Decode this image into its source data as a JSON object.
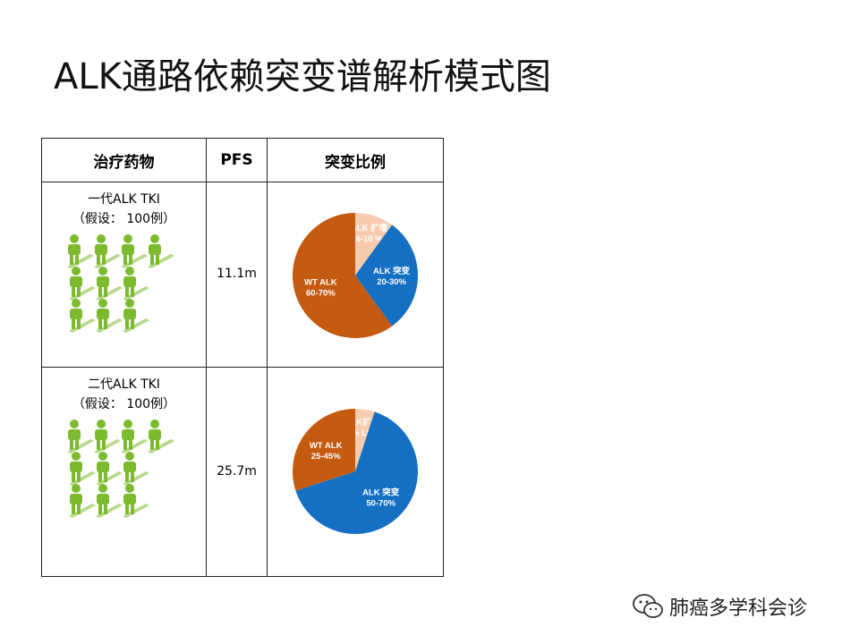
{
  "title": "ALK通路依赖突变谱解析模式图",
  "table": {
    "headers": [
      "治疗药物",
      "PFS",
      "突变比例"
    ],
    "rows": [
      {
        "drug_line1": "一代ALK TKI",
        "drug_line2": "（假设： 100例）",
        "pfs": "11.1m",
        "pie": [
          {
            "label": "ALK 扩增",
            "range": "6-10 %",
            "fraction": 0.1,
            "color": "#F8CBAD"
          },
          {
            "label": "ALK 突变",
            "range": "20-30%",
            "fraction": 0.3,
            "color": "#1570C4"
          },
          {
            "label": "WT ALK",
            "range": "60-70%",
            "fraction": 0.6,
            "color": "#C55A11"
          }
        ]
      },
      {
        "drug_line1": "二代ALK TKI",
        "drug_line2": "（假设： 100例）",
        "pfs": "25.7m",
        "pie": [
          {
            "label": "ALK扩增",
            "range": "% LD",
            "fraction": 0.05,
            "color": "#F8CBAD"
          },
          {
            "label": "ALK 突变",
            "range": "50-70%",
            "fraction": 0.65,
            "color": "#1570C4"
          },
          {
            "label": "WT ALK",
            "range": "25-45%",
            "fraction": 0.3,
            "color": "#C55A11"
          }
        ]
      }
    ]
  },
  "people_icon_color": "#7DBB2E",
  "logo": {
    "text": "肺癌多学科会诊",
    "icon": "wechat-icon"
  }
}
